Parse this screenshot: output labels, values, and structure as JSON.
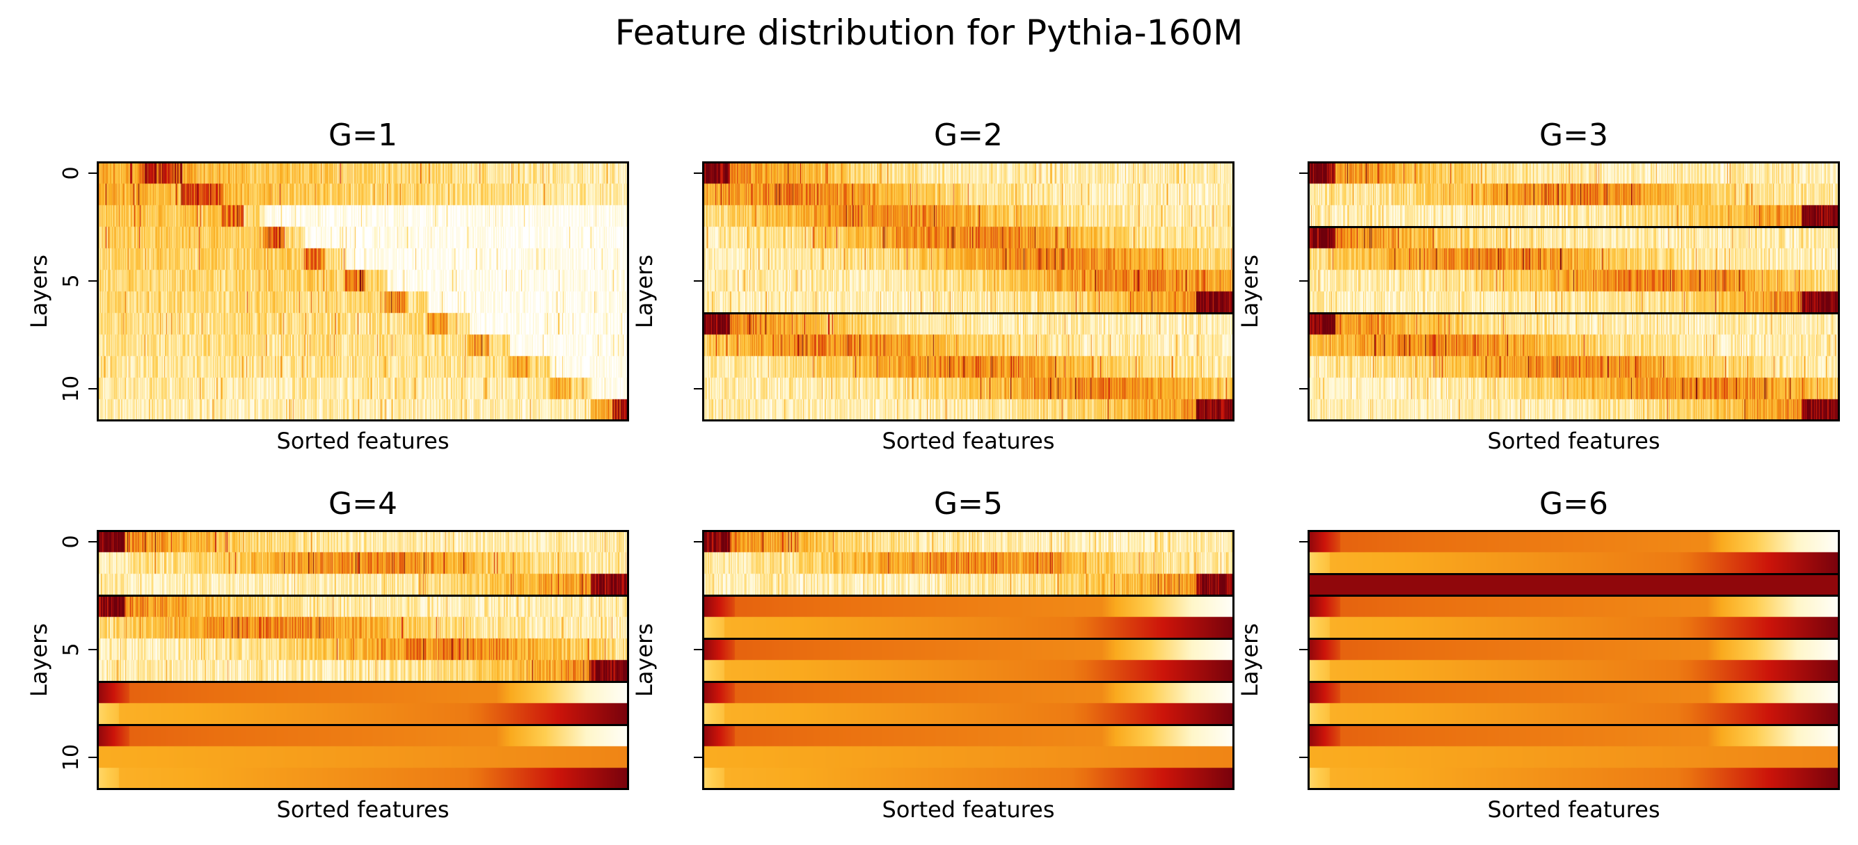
{
  "figure": {
    "suptitle": "Feature distribution for Pythia-160M"
  },
  "chart_data": {
    "type": "heatmap",
    "colormap": "YlOrRd-like (white → yellow → orange → red → dark red)",
    "n_layers": 12,
    "yticks": [
      "0",
      "5",
      "10"
    ],
    "xticks": [],
    "grid": false,
    "panels": [
      {
        "title": "G=1",
        "xlabel": "Sorted features",
        "ylabel": "Layers",
        "show_ytick_labels": true,
        "group_boundaries": [],
        "groups": [
          [
            0,
            11
          ]
        ],
        "style": "noisy"
      },
      {
        "title": "G=2",
        "xlabel": "Sorted features",
        "ylabel": "Layers",
        "show_ytick_labels": false,
        "group_boundaries": [
          7
        ],
        "groups": [
          [
            0,
            6
          ],
          [
            7,
            11
          ]
        ],
        "style": "noisy"
      },
      {
        "title": "G=3",
        "xlabel": "Sorted features",
        "ylabel": "Layers",
        "show_ytick_labels": false,
        "group_boundaries": [
          3,
          7
        ],
        "groups": [
          [
            0,
            2
          ],
          [
            3,
            6
          ],
          [
            7,
            11
          ]
        ],
        "style": "noisy"
      },
      {
        "title": "G=4",
        "xlabel": "Sorted features",
        "ylabel": "Layers",
        "show_ytick_labels": true,
        "group_boundaries": [
          3,
          7,
          9
        ],
        "groups": [
          [
            0,
            2
          ],
          [
            3,
            6
          ],
          [
            7,
            8
          ],
          [
            9,
            11
          ]
        ],
        "style": "mixed"
      },
      {
        "title": "G=5",
        "xlabel": "Sorted features",
        "ylabel": "Layers",
        "show_ytick_labels": false,
        "group_boundaries": [
          3,
          5,
          7,
          9
        ],
        "groups": [
          [
            0,
            2
          ],
          [
            3,
            4
          ],
          [
            5,
            6
          ],
          [
            7,
            8
          ],
          [
            9,
            11
          ]
        ],
        "style": "mixed"
      },
      {
        "title": "G=6",
        "xlabel": "Sorted features",
        "ylabel": "Layers",
        "show_ytick_labels": false,
        "group_boundaries": [
          2,
          3,
          5,
          7,
          9
        ],
        "groups": [
          [
            0,
            1
          ],
          [
            2,
            2
          ],
          [
            3,
            4
          ],
          [
            5,
            6
          ],
          [
            7,
            8
          ],
          [
            9,
            11
          ]
        ],
        "style": "smooth"
      }
    ]
  }
}
